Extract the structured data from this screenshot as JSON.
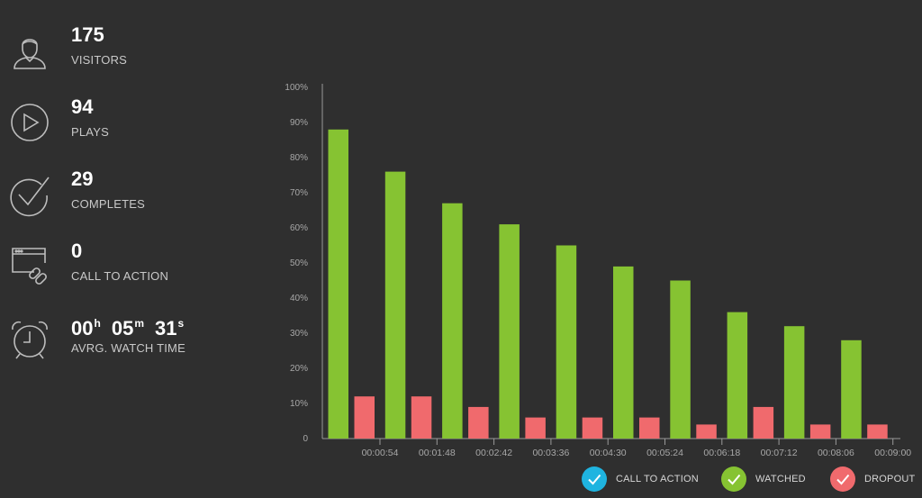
{
  "stats": {
    "visitors": {
      "value": "175",
      "label": "VISITORS",
      "icon": "user-icon"
    },
    "plays": {
      "value": "94",
      "label": "PLAYS",
      "icon": "play-icon"
    },
    "completes": {
      "value": "29",
      "label": "COMPLETES",
      "icon": "checkmark-icon"
    },
    "call_to_action": {
      "value": "0",
      "label": "CALL TO ACTION",
      "icon": "browser-link-icon"
    },
    "watch_time": {
      "hours": "00",
      "hours_unit": "h",
      "minutes": "05",
      "minutes_unit": "m",
      "seconds": "31",
      "seconds_unit": "s",
      "label": "AVRG. WATCH TIME",
      "icon": "alarm-clock-icon"
    }
  },
  "chart_data": {
    "type": "bar",
    "categories": [
      "00:00:54",
      "00:01:48",
      "00:02:42",
      "00:03:36",
      "00:04:30",
      "00:05:24",
      "00:06:18",
      "00:07:12",
      "00:08:06",
      "00:09:00"
    ],
    "y_ticks": [
      "0",
      "10%",
      "20%",
      "30%",
      "40%",
      "50%",
      "60%",
      "70%",
      "80%",
      "90%",
      "100%"
    ],
    "ylim": [
      0,
      100
    ],
    "series": [
      {
        "name": "WATCHED",
        "color": "#86c332",
        "values": [
          88,
          76,
          67,
          61,
          55,
          49,
          45,
          36,
          32,
          28
        ]
      },
      {
        "name": "DROPOUT",
        "color": "#f06a6d",
        "values": [
          12,
          12,
          9,
          6,
          6,
          6,
          4,
          9,
          4,
          4
        ]
      }
    ]
  },
  "legend": [
    {
      "label": "CALL TO ACTION",
      "color": "#1fb4e0"
    },
    {
      "label": "WATCHED",
      "color": "#86c332"
    },
    {
      "label": "DROPOUT",
      "color": "#f06a6d"
    }
  ]
}
